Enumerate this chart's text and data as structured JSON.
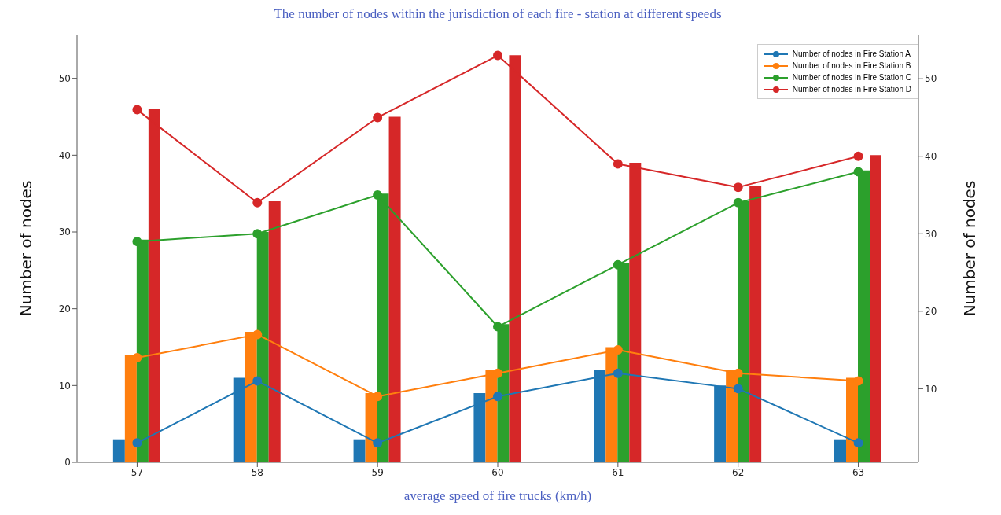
{
  "chart_data": {
    "type": "bar",
    "title": "The number of nodes within the jurisdiction of each fire - station at different speeds",
    "xlabel": "average speed of fire trucks (km/h)",
    "ylabel": "Number of nodes",
    "y2label": "Number of nodes",
    "categories": [
      "57",
      "58",
      "59",
      "60",
      "61",
      "62",
      "63"
    ],
    "series": [
      {
        "color": "#1f77b4",
        "values": [
          3,
          11,
          3,
          9,
          12,
          10,
          3
        ]
      },
      {
        "color": "#ff7f0e",
        "values": [
          14,
          17,
          9,
          12,
          15,
          12,
          11
        ]
      },
      {
        "color": "#2ca02c",
        "values": [
          29,
          30,
          35,
          18,
          26,
          34,
          38
        ]
      },
      {
        "color": "#d62728",
        "values": [
          46,
          34,
          45,
          53,
          39,
          36,
          40
        ]
      },
      {
        "type": "line",
        "axis": "y2",
        "name": "Number of nodes in Fire Station A",
        "color": "#1f77b4",
        "values": [
          3,
          11,
          3,
          9,
          12,
          10,
          3
        ]
      },
      {
        "type": "line",
        "axis": "y2",
        "name": "Number of nodes in Fire Station B",
        "color": "#ff7f0e",
        "values": [
          14,
          17,
          9,
          12,
          15,
          12,
          11
        ]
      },
      {
        "type": "line",
        "axis": "y2",
        "name": "Number of nodes in Fire Station C",
        "color": "#2ca02c",
        "values": [
          29,
          30,
          35,
          18,
          26,
          34,
          38
        ]
      },
      {
        "type": "line",
        "axis": "y2",
        "name": "Number of nodes in Fire Station D",
        "color": "#d62728",
        "values": [
          46,
          34,
          45,
          53,
          39,
          36,
          40
        ]
      }
    ],
    "ylim": [
      0,
      55.7
    ],
    "yticks": [
      0,
      10,
      20,
      30,
      40,
      50
    ],
    "y2lim": [
      0.5,
      55.7
    ],
    "y2ticks": [
      10,
      20,
      30,
      40,
      50
    ],
    "legend": "top right",
    "marker": "circle",
    "grid": false
  }
}
